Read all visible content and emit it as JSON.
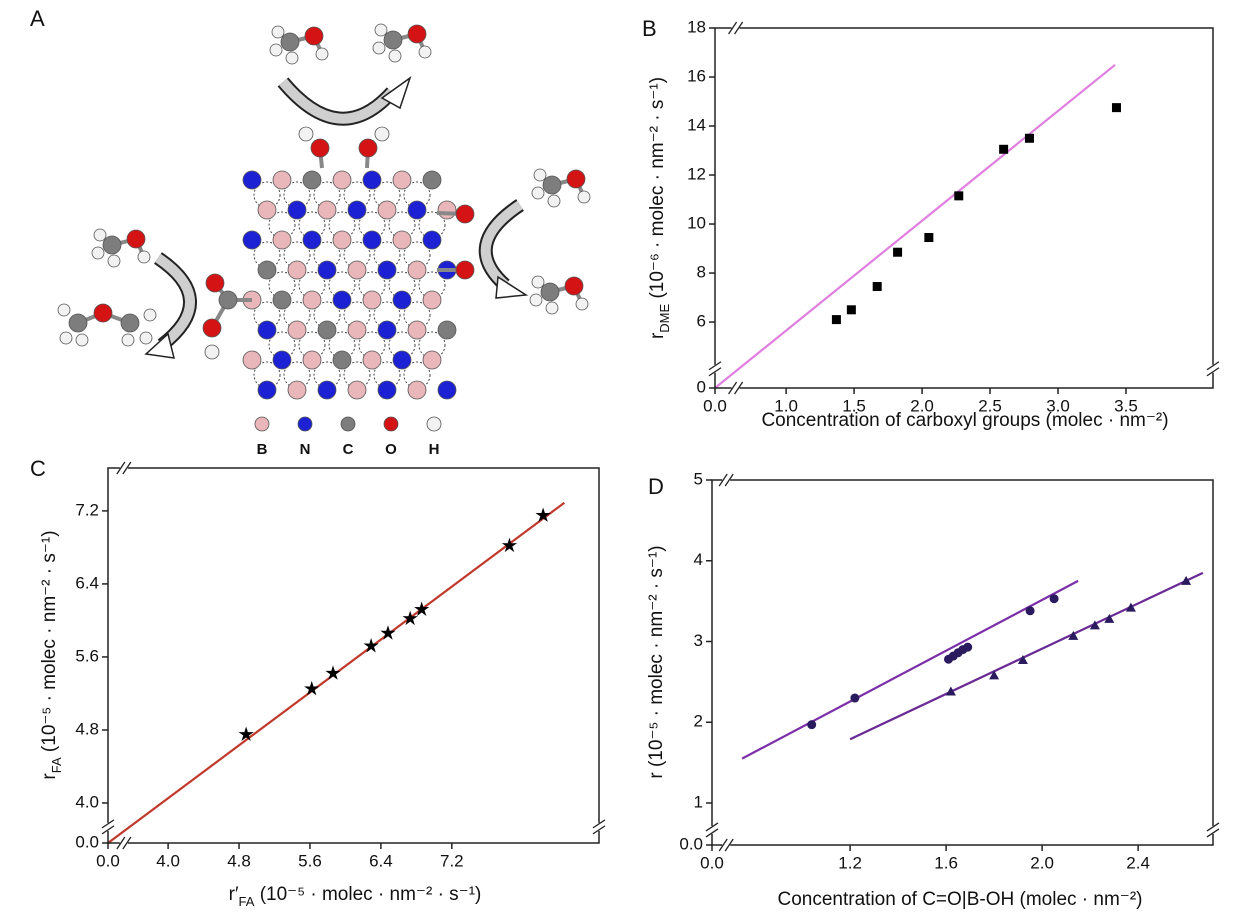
{
  "diagram": {
    "label": "A",
    "legend": [
      "B",
      "N",
      "C",
      "O",
      "H"
    ]
  },
  "chart_data": [
    {
      "type": "scatter",
      "panel_label": "B",
      "xlabel": [
        {
          "text": "Concentration of carboxyl groups (molec · nm⁻²)"
        }
      ],
      "ylabel": [
        {
          "text": "r"
        },
        {
          "text": "DME",
          "sub": true
        },
        {
          "text": " (10⁻⁶ · molec · nm⁻² · s⁻¹)"
        }
      ],
      "xlim": [
        0,
        4.14
      ],
      "xbreak": [
        0.1,
        0.68
      ],
      "xticks": [
        {
          "value": 0,
          "label": "0.0"
        },
        {
          "value": 1,
          "label": "1.0"
        },
        1.5,
        {
          "value": 2,
          "label": "2.0"
        },
        2.5,
        {
          "value": 3,
          "label": "3.0"
        },
        3.5
      ],
      "ylim": [
        0,
        18
      ],
      "ybreak": [
        0.5,
        4.38
      ],
      "yticks": [
        0,
        6,
        8,
        10,
        12,
        14,
        16,
        18
      ],
      "series": [
        {
          "marker": "square",
          "color": "#000000",
          "x": [
            1.37,
            1.48,
            1.67,
            1.82,
            2.05,
            2.27,
            2.6,
            2.79,
            3.43
          ],
          "values": [
            6.1,
            6.5,
            7.45,
            8.85,
            9.45,
            11.15,
            13.05,
            13.5,
            14.75
          ]
        }
      ],
      "fits": [
        {
          "color": "#e07fe0",
          "x": [
            0,
            3.42
          ],
          "values": [
            0,
            16.5
          ]
        }
      ]
    },
    {
      "type": "scatter",
      "panel_label": "C",
      "xlabel": [
        {
          "text": "r′"
        },
        {
          "text": "FA",
          "sub": true
        },
        {
          "text": " (10⁻⁵ · molec · nm⁻² · s⁻¹)"
        }
      ],
      "ylabel": [
        {
          "text": "r"
        },
        {
          "text": "FA",
          "sub": true
        },
        {
          "text": " (10⁻⁵ · molec · nm⁻² · s⁻¹)"
        }
      ],
      "xlim": [
        0,
        8.86
      ],
      "xbreak": [
        0.1,
        3.58
      ],
      "xticks": [
        {
          "value": 0,
          "label": "0.0"
        },
        {
          "value": 4,
          "label": "4.0"
        },
        4.8,
        5.6,
        6.4,
        7.2
      ],
      "ylim": [
        0,
        7.67
      ],
      "ybreak": [
        0.1,
        3.815
      ],
      "yticks": [
        {
          "value": 0,
          "label": "0.0"
        },
        {
          "value": 4,
          "label": "4.0"
        },
        4.8,
        5.6,
        6.4,
        7.2
      ],
      "series": [
        {
          "marker": "star",
          "color": "#000000",
          "x": [
            4.88,
            5.62,
            5.86,
            6.29,
            6.48,
            6.73,
            6.86,
            7.85,
            8.23
          ],
          "values": [
            4.75,
            5.25,
            5.42,
            5.72,
            5.86,
            6.02,
            6.12,
            6.82,
            7.15
          ]
        }
      ],
      "fits": [
        {
          "color": "#c0392b",
          "x": [
            0,
            8.47
          ],
          "values": [
            0,
            7.29
          ]
        }
      ]
    },
    {
      "type": "scatter",
      "panel_label": "D",
      "xlabel": [
        {
          "text": "Concentration of C=O|B-OH (molec · nm⁻²)"
        }
      ],
      "ylabel": [
        {
          "text": "r (10⁻⁵ · molec · nm⁻² · s⁻¹)"
        }
      ],
      "xlim": [
        0,
        2.712
      ],
      "xbreak": [
        0.03,
        0.713
      ],
      "xticks": [
        {
          "value": 0,
          "label": "0.0"
        },
        1.2,
        1.6,
        {
          "value": 2,
          "label": "2.0"
        },
        2.4
      ],
      "ylim": [
        0,
        5
      ],
      "ybreak": [
        0.1,
        0.753
      ],
      "yticks": [
        {
          "value": 0,
          "label": "0.0"
        },
        1,
        2,
        3,
        4,
        5
      ],
      "series": [
        {
          "marker": "circle",
          "color": "#2a1a5e",
          "x": [
            1.04,
            1.22,
            1.61,
            1.63,
            1.65,
            1.67,
            1.69,
            1.95,
            2.05
          ],
          "values": [
            1.97,
            2.3,
            2.78,
            2.82,
            2.86,
            2.9,
            2.93,
            3.38,
            3.53
          ]
        },
        {
          "marker": "triangle",
          "color": "#2a1a5e",
          "x": [
            1.62,
            1.8,
            1.92,
            2.13,
            2.22,
            2.28,
            2.37,
            2.6
          ],
          "values": [
            2.38,
            2.58,
            2.77,
            3.07,
            3.2,
            3.28,
            3.42,
            3.75
          ]
        }
      ],
      "fits": [
        {
          "color": "#7b2fa8",
          "x": [
            0.75,
            2.15
          ],
          "values": [
            1.55,
            3.75
          ]
        },
        {
          "color": "#6a2a95",
          "x": [
            1.2,
            2.67
          ],
          "values": [
            1.79,
            3.85
          ]
        }
      ]
    }
  ]
}
